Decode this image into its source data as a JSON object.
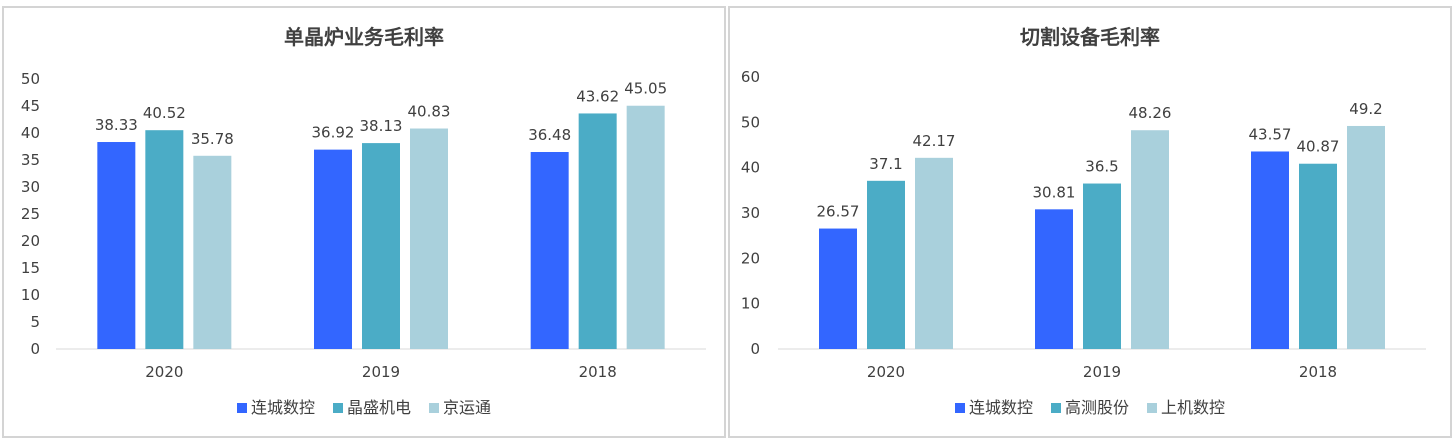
{
  "chart_data": [
    {
      "type": "bar",
      "title": "单晶炉业务毛利率",
      "categories": [
        "2020",
        "2019",
        "2018"
      ],
      "ylim": [
        0,
        50
      ],
      "yticks": [
        0,
        5,
        10,
        15,
        20,
        25,
        30,
        35,
        40,
        45,
        50
      ],
      "legend_position": "bottom",
      "series": [
        {
          "name": "连城数控",
          "color": "#3366ff",
          "values": [
            38.33,
            36.92,
            36.48
          ]
        },
        {
          "name": "晶盛机电",
          "color": "#4bacc6",
          "values": [
            40.52,
            38.13,
            43.62
          ]
        },
        {
          "name": "京运通",
          "color": "#a9d0dc",
          "values": [
            35.78,
            40.83,
            45.05
          ]
        }
      ]
    },
    {
      "type": "bar",
      "title": "切割设备毛利率",
      "categories": [
        "2020",
        "2019",
        "2018"
      ],
      "ylim": [
        0,
        60
      ],
      "yticks": [
        0,
        10,
        20,
        30,
        40,
        50,
        60
      ],
      "legend_position": "bottom",
      "series": [
        {
          "name": "连城数控",
          "color": "#3366ff",
          "values": [
            26.57,
            30.81,
            43.57
          ]
        },
        {
          "name": "高测股份",
          "color": "#4bacc6",
          "values": [
            37.1,
            36.5,
            40.87
          ]
        },
        {
          "name": "上机数控",
          "color": "#a9d0dc",
          "values": [
            42.17,
            48.26,
            49.2
          ]
        }
      ]
    }
  ]
}
